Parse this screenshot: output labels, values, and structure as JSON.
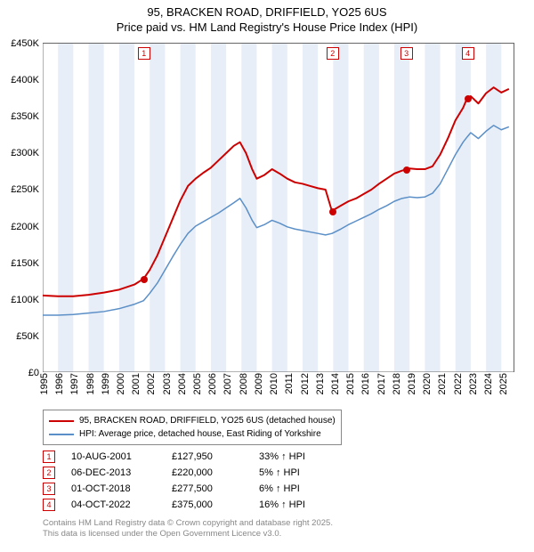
{
  "title_line1": "95, BRACKEN ROAD, DRIFFIELD, YO25 6US",
  "title_line2": "Price paid vs. HM Land Registry's House Price Index (HPI)",
  "chart": {
    "type": "line",
    "x_min": 1995,
    "x_max": 2025.8,
    "y_min": 0,
    "y_max": 450,
    "ytick_step": 50,
    "ytick_labels": [
      "£0",
      "£50K",
      "£100K",
      "£150K",
      "£200K",
      "£250K",
      "£300K",
      "£350K",
      "£400K",
      "£450K"
    ],
    "xticks": [
      1995,
      1996,
      1997,
      1998,
      1999,
      2000,
      2001,
      2002,
      2003,
      2004,
      2005,
      2006,
      2007,
      2008,
      2009,
      2010,
      2011,
      2012,
      2013,
      2014,
      2015,
      2016,
      2017,
      2018,
      2019,
      2020,
      2021,
      2022,
      2023,
      2024,
      2025
    ],
    "background_color": "#ffffff",
    "band_color": "#e8eef7",
    "axis_color": "#666666",
    "series": {
      "property": {
        "color": "#cc0000",
        "width": 2,
        "label": "95, BRACKEN ROAD, DRIFFIELD, YO25 6US (detached house)",
        "points": [
          [
            1995.0,
            105
          ],
          [
            1996.0,
            104
          ],
          [
            1997.0,
            104
          ],
          [
            1998.0,
            106
          ],
          [
            1999.0,
            109
          ],
          [
            2000.0,
            113
          ],
          [
            2001.0,
            120
          ],
          [
            2001.6,
            128
          ],
          [
            2002.0,
            140
          ],
          [
            2002.5,
            160
          ],
          [
            2003.0,
            185
          ],
          [
            2003.5,
            210
          ],
          [
            2004.0,
            235
          ],
          [
            2004.5,
            255
          ],
          [
            2005.0,
            265
          ],
          [
            2005.5,
            273
          ],
          [
            2006.0,
            280
          ],
          [
            2006.5,
            290
          ],
          [
            2007.0,
            300
          ],
          [
            2007.5,
            310
          ],
          [
            2007.9,
            315
          ],
          [
            2008.3,
            300
          ],
          [
            2008.7,
            278
          ],
          [
            2009.0,
            265
          ],
          [
            2009.5,
            270
          ],
          [
            2010.0,
            278
          ],
          [
            2010.5,
            272
          ],
          [
            2011.0,
            265
          ],
          [
            2011.5,
            260
          ],
          [
            2012.0,
            258
          ],
          [
            2012.5,
            255
          ],
          [
            2013.0,
            252
          ],
          [
            2013.5,
            250
          ],
          [
            2013.93,
            220
          ],
          [
            2014.0,
            222
          ],
          [
            2014.5,
            228
          ],
          [
            2015.0,
            234
          ],
          [
            2015.5,
            238
          ],
          [
            2016.0,
            244
          ],
          [
            2016.5,
            250
          ],
          [
            2017.0,
            258
          ],
          [
            2017.5,
            265
          ],
          [
            2018.0,
            272
          ],
          [
            2018.5,
            276
          ],
          [
            2018.75,
            277.5
          ],
          [
            2019.0,
            279
          ],
          [
            2019.5,
            278
          ],
          [
            2020.0,
            278
          ],
          [
            2020.5,
            282
          ],
          [
            2021.0,
            298
          ],
          [
            2021.5,
            320
          ],
          [
            2022.0,
            345
          ],
          [
            2022.5,
            362
          ],
          [
            2022.76,
            375
          ],
          [
            2023.0,
            378
          ],
          [
            2023.5,
            368
          ],
          [
            2024.0,
            382
          ],
          [
            2024.5,
            390
          ],
          [
            2025.0,
            383
          ],
          [
            2025.5,
            388
          ]
        ]
      },
      "hpi": {
        "color": "#5b8fc7",
        "width": 1.5,
        "label": "HPI: Average price, detached house, East Riding of Yorkshire",
        "points": [
          [
            1995.0,
            78
          ],
          [
            1996.0,
            78
          ],
          [
            1997.0,
            79
          ],
          [
            1998.0,
            81
          ],
          [
            1999.0,
            83
          ],
          [
            2000.0,
            87
          ],
          [
            2001.0,
            93
          ],
          [
            2001.6,
            98
          ],
          [
            2002.0,
            108
          ],
          [
            2002.5,
            122
          ],
          [
            2003.0,
            140
          ],
          [
            2003.5,
            158
          ],
          [
            2004.0,
            175
          ],
          [
            2004.5,
            190
          ],
          [
            2005.0,
            200
          ],
          [
            2005.5,
            206
          ],
          [
            2006.0,
            212
          ],
          [
            2006.5,
            218
          ],
          [
            2007.0,
            225
          ],
          [
            2007.5,
            232
          ],
          [
            2007.9,
            238
          ],
          [
            2008.3,
            225
          ],
          [
            2008.7,
            208
          ],
          [
            2009.0,
            198
          ],
          [
            2009.5,
            202
          ],
          [
            2010.0,
            208
          ],
          [
            2010.5,
            204
          ],
          [
            2011.0,
            199
          ],
          [
            2011.5,
            196
          ],
          [
            2012.0,
            194
          ],
          [
            2012.5,
            192
          ],
          [
            2013.0,
            190
          ],
          [
            2013.5,
            188
          ],
          [
            2013.93,
            190
          ],
          [
            2014.5,
            196
          ],
          [
            2015.0,
            202
          ],
          [
            2015.5,
            207
          ],
          [
            2016.0,
            212
          ],
          [
            2016.5,
            217
          ],
          [
            2017.0,
            223
          ],
          [
            2017.5,
            228
          ],
          [
            2018.0,
            234
          ],
          [
            2018.5,
            238
          ],
          [
            2019.0,
            240
          ],
          [
            2019.5,
            239
          ],
          [
            2020.0,
            240
          ],
          [
            2020.5,
            245
          ],
          [
            2021.0,
            258
          ],
          [
            2021.5,
            278
          ],
          [
            2022.0,
            298
          ],
          [
            2022.5,
            315
          ],
          [
            2022.76,
            322
          ],
          [
            2023.0,
            328
          ],
          [
            2023.5,
            320
          ],
          [
            2024.0,
            330
          ],
          [
            2024.5,
            338
          ],
          [
            2025.0,
            332
          ],
          [
            2025.5,
            336
          ]
        ]
      }
    },
    "sale_markers": [
      {
        "n": "1",
        "x": 2001.61,
        "y": 127.95
      },
      {
        "n": "2",
        "x": 2013.93,
        "y": 220.0
      },
      {
        "n": "3",
        "x": 2018.75,
        "y": 277.5
      },
      {
        "n": "4",
        "x": 2022.76,
        "y": 375.0
      }
    ]
  },
  "legend": {
    "rows": [
      {
        "color": "#cc0000",
        "label": "95, BRACKEN ROAD, DRIFFIELD, YO25 6US (detached house)"
      },
      {
        "color": "#5b8fc7",
        "label": "HPI: Average price, detached house, East Riding of Yorkshire"
      }
    ]
  },
  "sales_table": [
    {
      "n": "1",
      "date": "10-AUG-2001",
      "price": "£127,950",
      "pct": "33% ↑ HPI"
    },
    {
      "n": "2",
      "date": "06-DEC-2013",
      "price": "£220,000",
      "pct": "5% ↑ HPI"
    },
    {
      "n": "3",
      "date": "01-OCT-2018",
      "price": "£277,500",
      "pct": "6% ↑ HPI"
    },
    {
      "n": "4",
      "date": "04-OCT-2022",
      "price": "£375,000",
      "pct": "16% ↑ HPI"
    }
  ],
  "footnote_line1": "Contains HM Land Registry data © Crown copyright and database right 2025.",
  "footnote_line2": "This data is licensed under the Open Government Licence v3.0."
}
